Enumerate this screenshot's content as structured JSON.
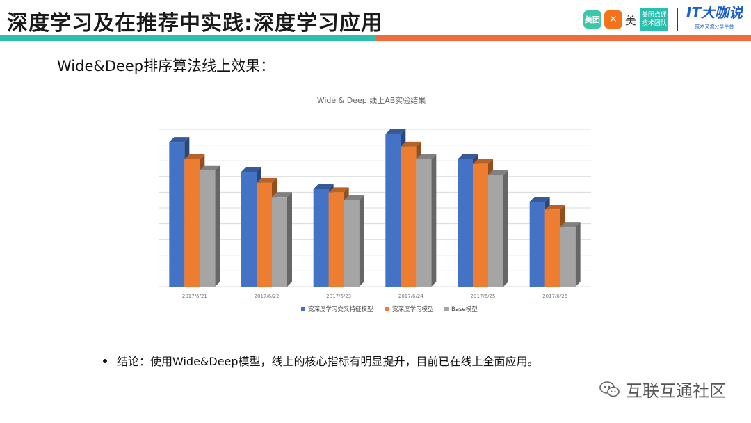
{
  "header": {
    "title": "深度学习及在推荐中实践:深度学习应用",
    "logo_a": "美团",
    "logo_b": "✕",
    "logo_c": "美",
    "logo_d_line1": "美团点评",
    "logo_d_line2": "技术团队",
    "logo_e": "IT大咖说",
    "logo_e_sub": "技术交流分享平台"
  },
  "subtitle": "Wide&Deep排序算法线上效果：",
  "chart_data": {
    "type": "bar",
    "title": "Wide & Deep 线上AB实验结果",
    "categories": [
      "2017/6/21",
      "2017/6/22",
      "2017/6/23",
      "2017/6/24",
      "2017/6/25",
      "2017/6/26"
    ],
    "series": [
      {
        "name": "宽深度学习交叉特征模型",
        "color": "#4472c4",
        "values": [
          9.2,
          7.3,
          6.2,
          9.7,
          8.1,
          5.4
        ]
      },
      {
        "name": "宽深度学习模型",
        "color": "#ed7d31",
        "values": [
          8.1,
          6.6,
          6.0,
          8.9,
          7.8,
          4.9
        ]
      },
      {
        "name": "Base模型",
        "color": "#a5a5a5",
        "values": [
          7.4,
          5.7,
          5.5,
          8.1,
          7.1,
          3.8
        ]
      }
    ],
    "ylim": [
      0,
      10
    ],
    "gridlines": 10,
    "grid": true,
    "legend": "bottom"
  },
  "conclusion": "结论：使用Wide&Deep模型，线上的核心指标有明显提升，目前已在线上全面应用。",
  "watermark": "互联互通社区"
}
